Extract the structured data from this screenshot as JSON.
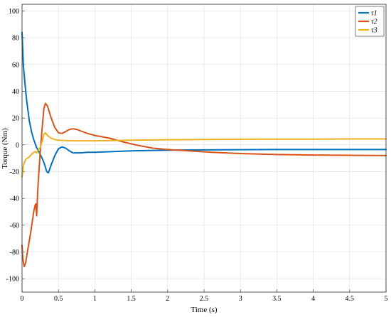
{
  "chart_data": {
    "type": "line",
    "title": "",
    "xlabel": "Time (s)",
    "ylabel": "Torque (Nm)",
    "xlim": [
      0,
      5
    ],
    "ylim": [
      -110,
      105
    ],
    "xticks": [
      0,
      0.5,
      1,
      1.5,
      2,
      2.5,
      3,
      3.5,
      4,
      4.5,
      5
    ],
    "yticks": [
      -100,
      -80,
      -60,
      -40,
      -20,
      0,
      20,
      40,
      60,
      80,
      100
    ],
    "grid": true,
    "legend_position": "top-right",
    "series": [
      {
        "name": "τ1",
        "color": "#0072BD",
        "points": [
          [
            0,
            84
          ],
          [
            0.01,
            70
          ],
          [
            0.02,
            58
          ],
          [
            0.04,
            46
          ],
          [
            0.06,
            35
          ],
          [
            0.08,
            26
          ],
          [
            0.1,
            18
          ],
          [
            0.13,
            10
          ],
          [
            0.16,
            4
          ],
          [
            0.2,
            -2
          ],
          [
            0.25,
            -7
          ],
          [
            0.3,
            -13
          ],
          [
            0.34,
            -20
          ],
          [
            0.36,
            -21
          ],
          [
            0.4,
            -15
          ],
          [
            0.45,
            -8
          ],
          [
            0.5,
            -3
          ],
          [
            0.55,
            -1.5
          ],
          [
            0.6,
            -2.5
          ],
          [
            0.65,
            -4.5
          ],
          [
            0.7,
            -6
          ],
          [
            0.8,
            -6
          ],
          [
            0.9,
            -5.5
          ],
          [
            1.0,
            -5.5
          ],
          [
            1.5,
            -4.5
          ],
          [
            2.0,
            -4
          ],
          [
            2.5,
            -3.8
          ],
          [
            3.0,
            -3.6
          ],
          [
            3.5,
            -3.5
          ],
          [
            4.0,
            -3.5
          ],
          [
            4.5,
            -3.5
          ],
          [
            5.0,
            -3.5
          ]
        ]
      },
      {
        "name": "τ2",
        "color": "#D95319",
        "points": [
          [
            0,
            -75
          ],
          [
            0.01,
            -85
          ],
          [
            0.03,
            -91
          ],
          [
            0.05,
            -88
          ],
          [
            0.08,
            -78
          ],
          [
            0.12,
            -65
          ],
          [
            0.16,
            -50
          ],
          [
            0.18,
            -45
          ],
          [
            0.19,
            -44
          ],
          [
            0.2,
            -53
          ],
          [
            0.22,
            -30
          ],
          [
            0.25,
            -5
          ],
          [
            0.28,
            15
          ],
          [
            0.3,
            27
          ],
          [
            0.32,
            31
          ],
          [
            0.35,
            29
          ],
          [
            0.4,
            20
          ],
          [
            0.45,
            13
          ],
          [
            0.5,
            9
          ],
          [
            0.55,
            8.5
          ],
          [
            0.6,
            10
          ],
          [
            0.65,
            11.5
          ],
          [
            0.7,
            12
          ],
          [
            0.75,
            11.5
          ],
          [
            0.8,
            10.5
          ],
          [
            0.9,
            8.5
          ],
          [
            1.0,
            7
          ],
          [
            1.2,
            5
          ],
          [
            1.4,
            2
          ],
          [
            1.6,
            -0.5
          ],
          [
            1.8,
            -2.5
          ],
          [
            2.0,
            -3.5
          ],
          [
            2.3,
            -4.5
          ],
          [
            2.6,
            -5.5
          ],
          [
            3.0,
            -6.5
          ],
          [
            3.5,
            -7.2
          ],
          [
            4.0,
            -7.6
          ],
          [
            4.5,
            -7.8
          ],
          [
            5.0,
            -8
          ]
        ]
      },
      {
        "name": "τ3",
        "color": "#EDB120",
        "points": [
          [
            0,
            -24
          ],
          [
            0.02,
            -15
          ],
          [
            0.05,
            -11
          ],
          [
            0.1,
            -9
          ],
          [
            0.15,
            -6
          ],
          [
            0.18,
            -5
          ],
          [
            0.2,
            -6
          ],
          [
            0.22,
            -4
          ],
          [
            0.25,
            -2
          ],
          [
            0.28,
            3
          ],
          [
            0.3,
            8
          ],
          [
            0.32,
            9
          ],
          [
            0.35,
            7
          ],
          [
            0.4,
            5
          ],
          [
            0.45,
            4
          ],
          [
            0.5,
            3.5
          ],
          [
            0.6,
            3.2
          ],
          [
            0.7,
            3
          ],
          [
            0.8,
            3
          ],
          [
            1.0,
            3
          ],
          [
            1.5,
            3.5
          ],
          [
            2.0,
            3.8
          ],
          [
            2.5,
            4
          ],
          [
            3.0,
            4.2
          ],
          [
            3.5,
            4.3
          ],
          [
            4.0,
            4.3
          ],
          [
            4.5,
            4.4
          ],
          [
            5.0,
            4.4
          ]
        ]
      }
    ]
  }
}
